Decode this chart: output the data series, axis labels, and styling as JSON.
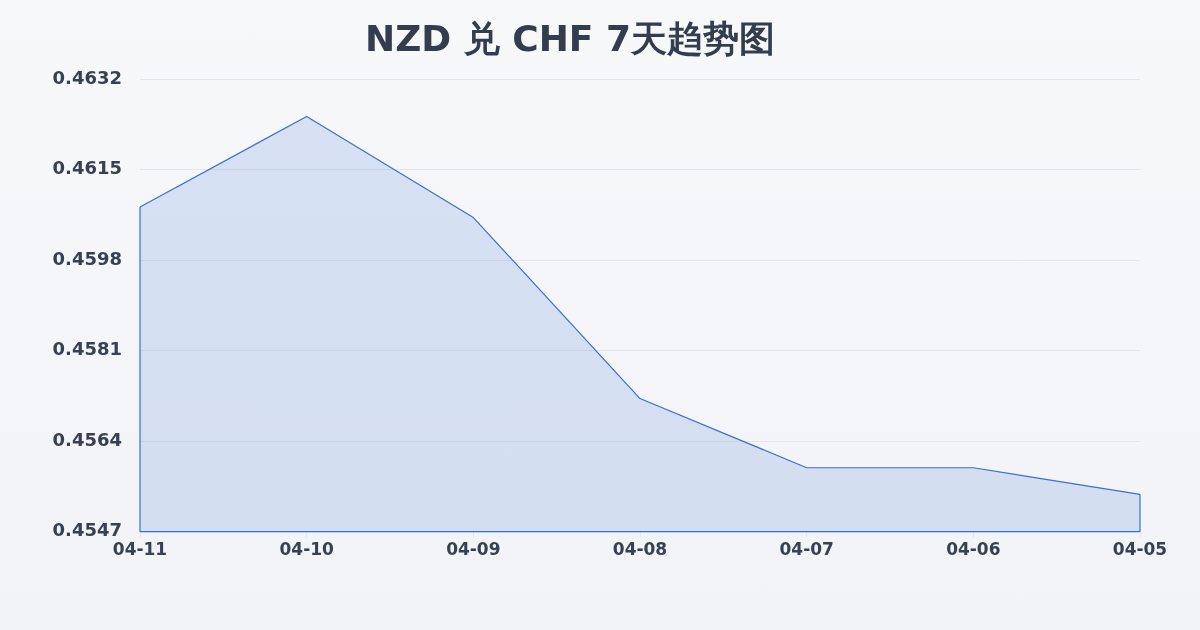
{
  "chart_data": {
    "type": "area",
    "title": "NZD 兑 CHF 7天趋势图",
    "categories": [
      "04-11",
      "04-10",
      "04-09",
      "04-08",
      "04-07",
      "04-06",
      "04-05"
    ],
    "values": [
      0.4608,
      0.4625,
      0.4606,
      0.4572,
      0.4559,
      0.4559,
      0.4554
    ],
    "color": "#3b6fd4",
    "ylim": [
      0.4547,
      0.4632
    ],
    "yticks": [
      0.4547,
      0.4564,
      0.4581,
      0.4598,
      0.4615,
      0.4632
    ],
    "grid": "y",
    "marker": "none"
  }
}
